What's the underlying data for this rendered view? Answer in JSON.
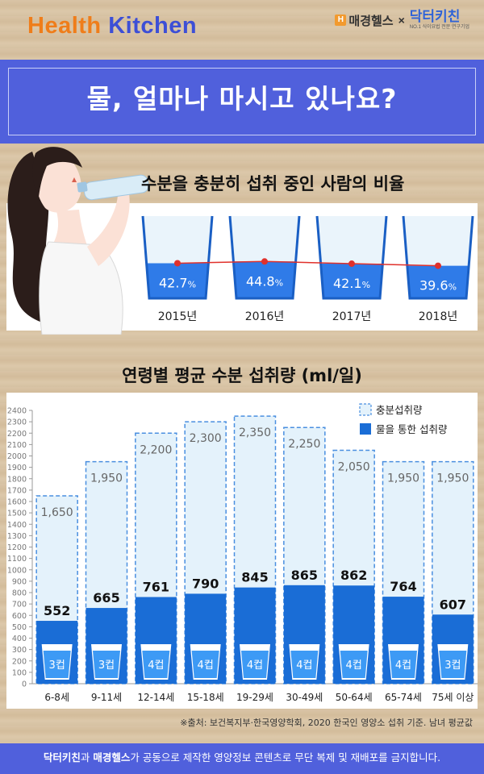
{
  "header": {
    "brand_part1": "Health",
    "brand_part2": "Kitchen",
    "partner1": "매경헬스",
    "partner1_icon": "H",
    "times": "×",
    "partner2": "닥터키친",
    "partner2_sub": "NO.1 식이요법 전문 연구기업"
  },
  "banner": {
    "title": "물, 얼마나 마시고 있나요?"
  },
  "rate_section": {
    "title": "수분을 충분히 섭취 중인 사람의 비율"
  },
  "age_section": {
    "title": "연령별 평균 수분 섭취량 (ml/일)"
  },
  "source": "※출처: 보건복지부·한국영양학회, 2020 한국인 영양소 섭취 기준. 남녀 평균값",
  "footer": {
    "brand1": "닥터키친",
    "mid1": "과 ",
    "brand2": "매경헬스",
    "rest": "가 공동으로 제작한 영양정보 콘텐츠로 무단 복제 및 재배포를 금지합니다."
  },
  "colors": {
    "accent_blue": "#2f7be8",
    "dark_blue": "#1a6dd6",
    "light_blue": "#e4f2fb",
    "banner": "#5060dc",
    "orange": "#ef7d1a"
  },
  "chart_data": [
    {
      "type": "line",
      "title": "수분을 충분히 섭취 중인 사람의 비율",
      "categories": [
        "2015년",
        "2016년",
        "2017년",
        "2018년"
      ],
      "values": [
        42.7,
        44.8,
        42.1,
        39.6
      ],
      "value_labels": [
        "42.7",
        "44.8",
        "42.1",
        "39.6"
      ],
      "unit": "%",
      "ylim": [
        0,
        100
      ]
    },
    {
      "type": "bar",
      "title": "연령별 평균 수분 섭취량 (ml/일)",
      "categories": [
        "6-8세",
        "9-11세",
        "12-14세",
        "15-18세",
        "19-29세",
        "30-49세",
        "50-64세",
        "65-74세",
        "75세 이상"
      ],
      "series": [
        {
          "name": "충분섭취량",
          "values": [
            1650,
            1950,
            2200,
            2300,
            2350,
            2250,
            2050,
            1950,
            1950
          ],
          "labels": [
            "1,650",
            "1,950",
            "2,200",
            "2,300",
            "2,350",
            "2,250",
            "2,050",
            "1,950",
            "1,950"
          ]
        },
        {
          "name": "물을 통한 섭취량",
          "values": [
            552,
            665,
            761,
            790,
            845,
            865,
            862,
            764,
            607
          ],
          "labels": [
            "552",
            "665",
            "761",
            "790",
            "845",
            "865",
            "862",
            "764",
            "607"
          ]
        }
      ],
      "cups": [
        "3컵",
        "3컵",
        "4컵",
        "4컵",
        "4컵",
        "4컵",
        "4컵",
        "4컵",
        "3컵"
      ],
      "yticks": [
        "0",
        "100",
        "200",
        "300",
        "400",
        "500",
        "600",
        "700",
        "800",
        "900",
        "1000",
        "1100",
        "1200",
        "1300",
        "1400",
        "1500",
        "1600",
        "1700",
        "1800",
        "1900",
        "2000",
        "2100",
        "2200",
        "2300",
        "2400"
      ],
      "ylim": [
        0,
        2400
      ],
      "legend_position": "top-right"
    }
  ]
}
